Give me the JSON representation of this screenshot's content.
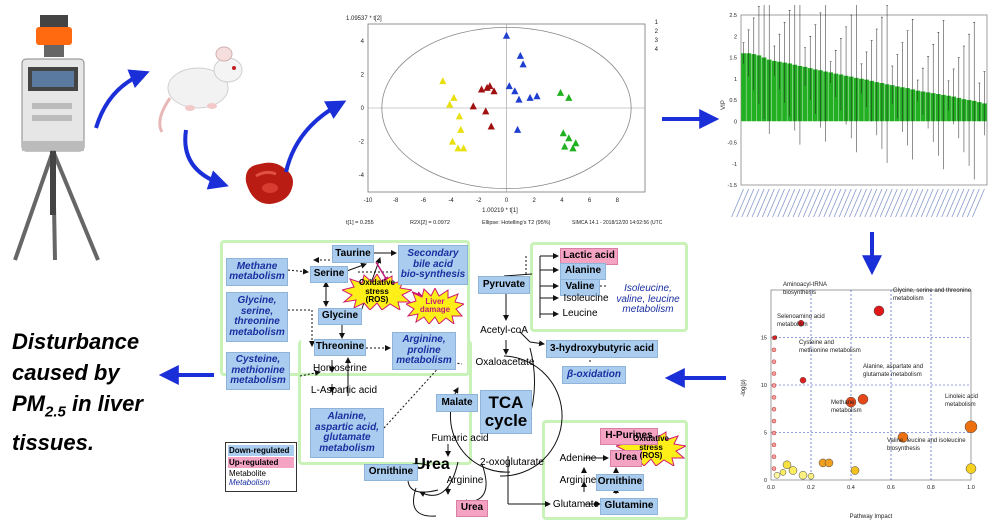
{
  "pls_plot": {
    "ylabel": "1.09537 * t[2]",
    "xlabel": "1.00219 * t[1]",
    "classes": [
      "1",
      "2",
      "3",
      "4"
    ],
    "xticks": [
      "-10",
      "-8",
      "-6",
      "-4",
      "-2",
      "0",
      "2",
      "4",
      "6",
      "8"
    ],
    "yticks": [
      "4",
      "2",
      "0",
      "-2",
      "-4"
    ],
    "footer": {
      "r2x1": "t[1] = 0.255",
      "r2x2": "R2X[2] = 0.0972",
      "ellipse": "Ellipse: Hotelling's T2 (95%)",
      "software": "SIMCA 14.1 - 2018/12/20 14:02:56 (UTC"
    },
    "series": [
      {
        "name": "1",
        "color": "#e8e010",
        "points": [
          [
            -4.6,
            1.6
          ],
          [
            -4.1,
            0.2
          ],
          [
            -3.8,
            0.6
          ],
          [
            -3.4,
            -0.5
          ],
          [
            -3.3,
            -1.3
          ],
          [
            -3.9,
            -2.0
          ],
          [
            -3.5,
            -2.4
          ],
          [
            -3.1,
            -2.4
          ]
        ]
      },
      {
        "name": "2",
        "color": "#a01010",
        "points": [
          [
            -1.8,
            1.1
          ],
          [
            -1.4,
            1.2
          ],
          [
            -1.2,
            1.3
          ],
          [
            -0.9,
            1.0
          ],
          [
            -2.4,
            0.1
          ],
          [
            -1.5,
            -0.2
          ],
          [
            -1.1,
            -1.1
          ]
        ]
      },
      {
        "name": "3",
        "color": "#1f3fd0",
        "points": [
          [
            0,
            4.3
          ],
          [
            1.0,
            3.1
          ],
          [
            1.2,
            2.6
          ],
          [
            0.6,
            1.0
          ],
          [
            0.2,
            1.3
          ],
          [
            0.9,
            0.5
          ],
          [
            1.7,
            0.6
          ],
          [
            2.2,
            0.7
          ],
          [
            0.8,
            -1.3
          ]
        ]
      },
      {
        "name": "4",
        "color": "#20b020",
        "points": [
          [
            3.9,
            0.9
          ],
          [
            4.5,
            0.6
          ],
          [
            4.1,
            -1.5
          ],
          [
            4.5,
            -1.8
          ],
          [
            4.2,
            -2.3
          ],
          [
            4.8,
            -2.4
          ],
          [
            5.0,
            -2.1
          ]
        ]
      }
    ]
  },
  "vip_plot": {
    "ylabel": "VIP",
    "yticks": [
      "2.5",
      "2",
      "1.5",
      "1",
      "0.5",
      "0",
      "-0.5",
      "-1",
      "-1.5"
    ],
    "values": [
      1.6,
      1.6,
      1.58,
      1.55,
      1.5,
      1.45,
      1.42,
      1.4,
      1.38,
      1.36,
      1.33,
      1.3,
      1.28,
      1.25,
      1.22,
      1.2,
      1.17,
      1.15,
      1.12,
      1.1,
      1.07,
      1.05,
      1.02,
      1.0,
      0.98,
      0.95,
      0.92,
      0.9,
      0.87,
      0.85,
      0.82,
      0.8,
      0.78,
      0.75,
      0.72,
      0.7,
      0.68,
      0.66,
      0.64,
      0.62,
      0.6,
      0.58,
      0.55,
      0.52,
      0.5,
      0.48,
      0.45,
      0.42
    ]
  },
  "pathway_plot": {
    "ylabel": "-log(p)",
    "xlabel": "Pathway Impact",
    "yticks": [
      "15",
      "10",
      "5",
      "0"
    ],
    "xticks": [
      "0.0",
      "0.2",
      "0.4",
      "0.6",
      "0.8",
      "1.0"
    ],
    "labels": {
      "aminoacyl": "Aminoacyl-tRNA\nbiosynthesis",
      "glycine": "Glycine, serine and threonine\nmetabolism",
      "seleno": "Selenoamino acid\nmetabolism",
      "cysteine": "Cysteine and\nmethionine metabolism",
      "alanine": "Alanine, aspartate and\nglutamate metabolism",
      "methane": "Methane\nmetabolism",
      "linoleic": "Linoleic acid\nmetabolism",
      "valine": "Valine, leucine and isoleucine\nbiosynthesis"
    },
    "points": [
      {
        "x": 0.54,
        "y": 17.8,
        "r": 5,
        "color": "#e01818"
      },
      {
        "x": 0.15,
        "y": 16.5,
        "r": 3,
        "color": "#e01818"
      },
      {
        "x": 0.02,
        "y": 15.0,
        "r": 2,
        "color": "#e02020"
      },
      {
        "x": 0.16,
        "y": 10.5,
        "r": 3,
        "color": "#e02020"
      },
      {
        "x": 0.46,
        "y": 8.5,
        "r": 5,
        "color": "#e44818"
      },
      {
        "x": 0.4,
        "y": 8.2,
        "r": 5,
        "color": "#e44818"
      },
      {
        "x": 1.0,
        "y": 5.6,
        "r": 6,
        "color": "#ec7010"
      },
      {
        "x": 0.66,
        "y": 4.5,
        "r": 5,
        "color": "#ec7010"
      },
      {
        "x": 0.26,
        "y": 1.8,
        "r": 4,
        "color": "#f0a020"
      },
      {
        "x": 0.29,
        "y": 1.8,
        "r": 4,
        "color": "#f0a020"
      },
      {
        "x": 0.42,
        "y": 1.0,
        "r": 4,
        "color": "#f4c020"
      },
      {
        "x": 1.0,
        "y": 1.2,
        "r": 5,
        "color": "#f4d020"
      },
      {
        "x": 0.08,
        "y": 1.6,
        "r": 4,
        "color": "#f8e040"
      },
      {
        "x": 0.11,
        "y": 1.0,
        "r": 4,
        "color": "#fbec60"
      },
      {
        "x": 0.06,
        "y": 0.8,
        "r": 3,
        "color": "#fbec60"
      },
      {
        "x": 0.16,
        "y": 0.5,
        "r": 4,
        "color": "#fcf080"
      },
      {
        "x": 0.2,
        "y": 0.4,
        "r": 3,
        "color": "#fcf080"
      },
      {
        "x": 0.03,
        "y": 0.5,
        "r": 3,
        "color": "#fff6a0"
      }
    ]
  },
  "pathway": {
    "taurine": "Taurine",
    "secondary_bile": "Secondary\nbile acid\nbio-synthesis",
    "methane": "Methane\nmetabolism",
    "serine": "Serine",
    "oxidative_stress_1": "Oxidative\nstress\n(ROS)",
    "liver_damage": "Liver\ndamage",
    "glycine_met": "Glycine,\nserine,\nthreonine\nmetabolism",
    "glycine": "Glycine",
    "threonine": "Threonine",
    "arginine_proline": "Arginine,\nproline\nmetabolism",
    "cysteine_met": "Cysteine,\nmethionine\nmetabolism",
    "homoserine": "Homoserine",
    "l_aspartic": "L-Aspartic acid",
    "alanine_met": "Alanine,\naspartic acid,\nglutamate\nmetabolism",
    "lactic": "Lactic acid",
    "pyruvate": "Pyruvate",
    "alanine": "Alanine",
    "valine": "Valine",
    "isoleucine": "Isoleucine",
    "leucine": "Leucine",
    "bcaa_met": "Isoleucine,\nvaline, leucine\nmetabolism",
    "acetyl": "Acetyl-coA",
    "hydroxybutyric": "3-hydroxybutyric acid",
    "beta_ox": "β-oxidation",
    "oxaloacetate": "Oxaloacetate",
    "malate": "Malate",
    "tca": "TCA\ncycle",
    "fumaric": "Fumaric acid",
    "oxoglutarate": "2-oxoglutarate",
    "urea_cycle": "Urea",
    "ornithine_left": "Ornithine",
    "arginine_cycle": "Arginine",
    "urea_bottom": "Urea",
    "h_purines": "H-Purines",
    "urea_right": "Urea",
    "oxidative_stress_2": "Oxidative\nstress\n(ROS)",
    "adenine": "Adenine",
    "arginine_right": "Arginine",
    "ornithine_right": "Ornithine",
    "glutamate": "Glutamate",
    "glutamine": "Glutamine"
  },
  "legend": {
    "down": "Down-regulated",
    "up": "Up-regulated",
    "metabolite": "Metabolite",
    "metabolism": "Metabolism"
  },
  "title": {
    "line1": "Disturbance",
    "line2": "caused by",
    "line3_pre": "PM",
    "line3_sub": "2.5",
    "line3_post": " in liver",
    "line4": "tissues."
  },
  "colors": {
    "arrow": "#1a2fd8",
    "downregulated": "#a9ccef",
    "upregulated": "#f5a3c3",
    "metabolism_text": "#1a2fa0",
    "green_border": "#c9f2b8",
    "vip_bar": "#22b022",
    "starburst": "#ffef18"
  }
}
